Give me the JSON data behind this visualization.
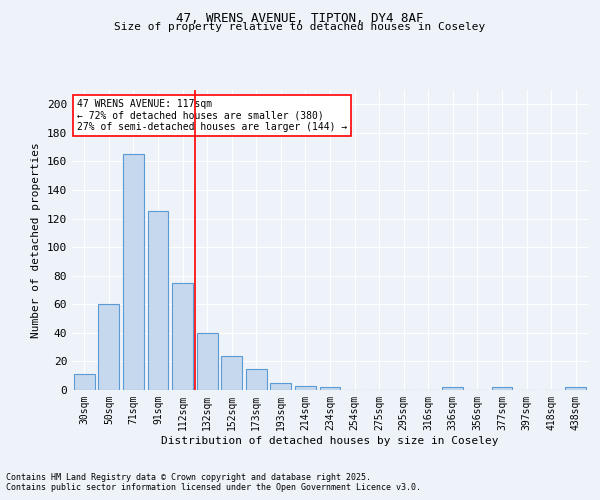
{
  "title1": "47, WRENS AVENUE, TIPTON, DY4 8AF",
  "title2": "Size of property relative to detached houses in Coseley",
  "xlabel": "Distribution of detached houses by size in Coseley",
  "ylabel": "Number of detached properties",
  "bar_labels": [
    "30sqm",
    "50sqm",
    "71sqm",
    "91sqm",
    "112sqm",
    "132sqm",
    "152sqm",
    "173sqm",
    "193sqm",
    "214sqm",
    "234sqm",
    "254sqm",
    "275sqm",
    "295sqm",
    "316sqm",
    "336sqm",
    "356sqm",
    "377sqm",
    "397sqm",
    "418sqm",
    "438sqm"
  ],
  "bar_values": [
    11,
    60,
    165,
    125,
    75,
    40,
    24,
    15,
    5,
    3,
    2,
    0,
    0,
    0,
    0,
    2,
    0,
    2,
    0,
    0,
    2
  ],
  "bar_color": "#c5d8ed",
  "bar_edge_color": "#5b9bd5",
  "background_color": "#eef3f9",
  "grid_color": "#ffffff",
  "vline_x": 4.5,
  "vline_color": "red",
  "annotation_text": "47 WRENS AVENUE: 117sqm\n← 72% of detached houses are smaller (380)\n27% of semi-detached houses are larger (144) →",
  "annotation_box_color": "white",
  "annotation_box_edge": "red",
  "ylim": [
    0,
    210
  ],
  "yticks": [
    0,
    20,
    40,
    60,
    80,
    100,
    120,
    140,
    160,
    180,
    200
  ],
  "footnote1": "Contains HM Land Registry data © Crown copyright and database right 2025.",
  "footnote2": "Contains public sector information licensed under the Open Government Licence v3.0."
}
